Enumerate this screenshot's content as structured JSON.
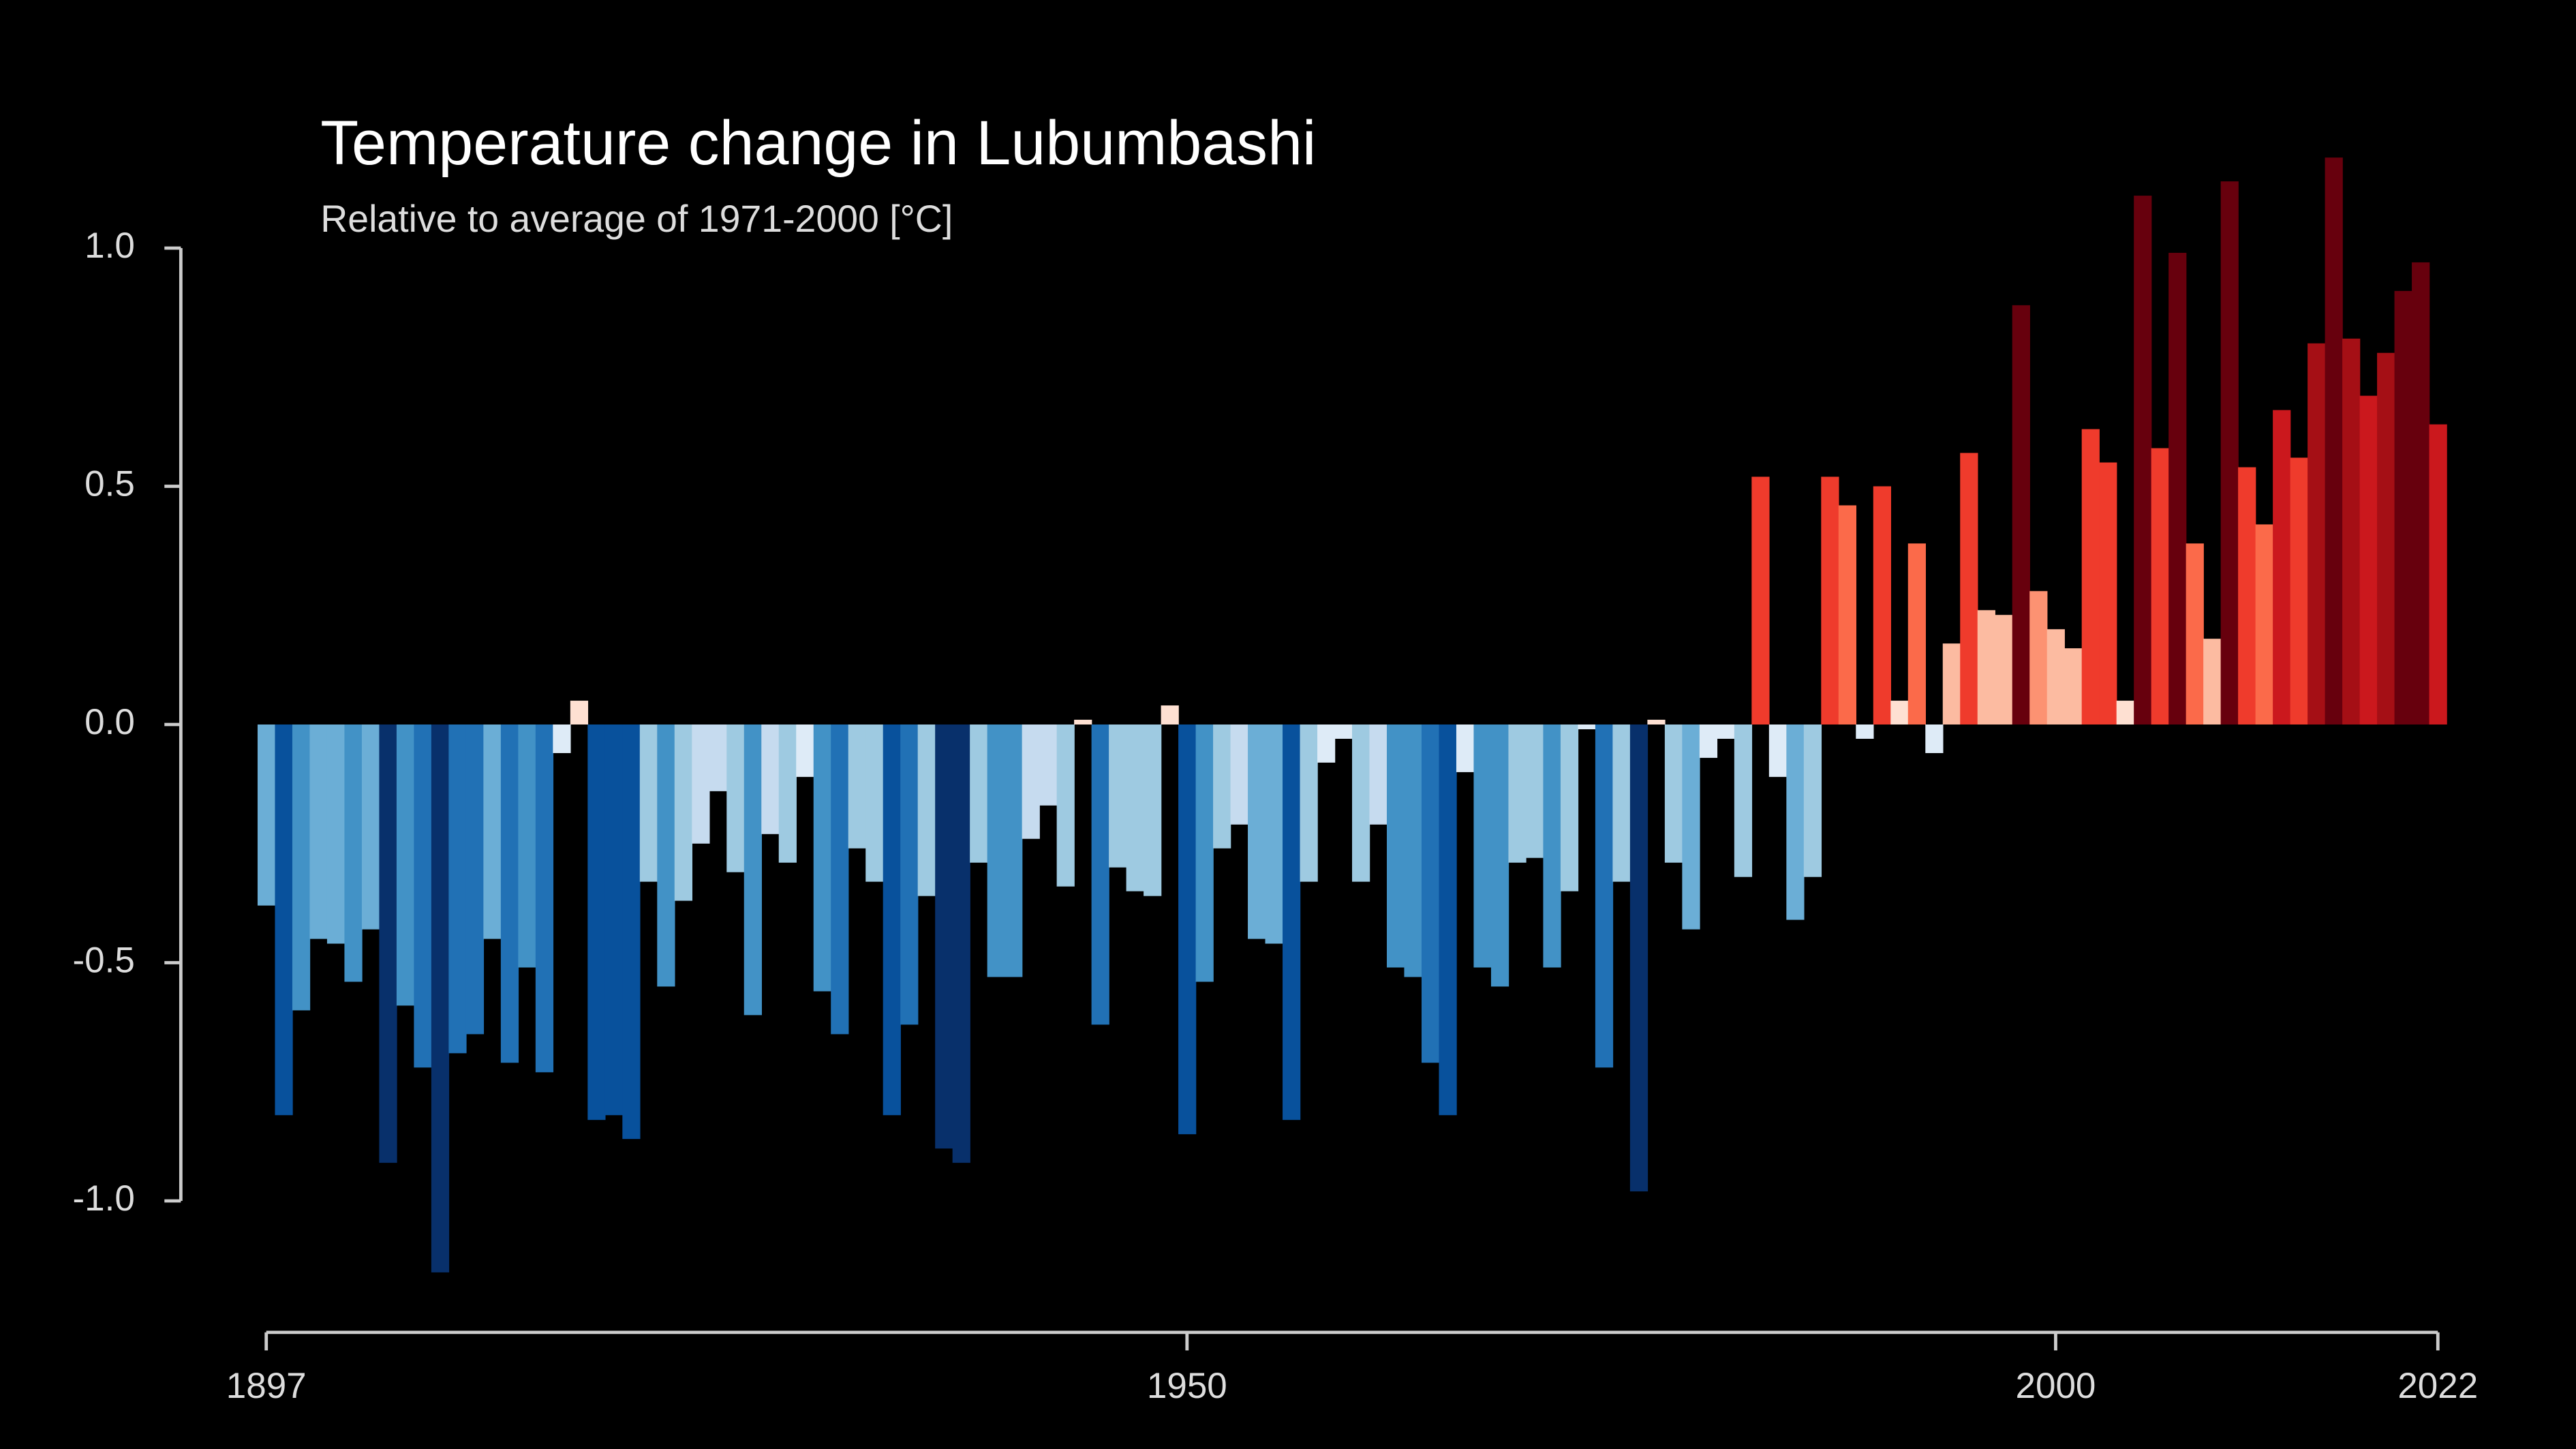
{
  "chart_data": {
    "type": "bar",
    "title": "Temperature change in Lubumbashi",
    "subtitle": "Relative to average of 1971-2000  [°C]",
    "x": [
      1897,
      1898,
      1899,
      1900,
      1901,
      1902,
      1903,
      1904,
      1905,
      1906,
      1907,
      1908,
      1909,
      1910,
      1911,
      1912,
      1913,
      1914,
      1915,
      1916,
      1917,
      1918,
      1919,
      1920,
      1921,
      1922,
      1923,
      1924,
      1925,
      1926,
      1927,
      1928,
      1929,
      1930,
      1931,
      1932,
      1933,
      1934,
      1935,
      1936,
      1937,
      1938,
      1939,
      1940,
      1941,
      1942,
      1943,
      1944,
      1945,
      1946,
      1947,
      1948,
      1949,
      1950,
      1951,
      1952,
      1953,
      1954,
      1955,
      1956,
      1957,
      1958,
      1959,
      1960,
      1961,
      1962,
      1963,
      1964,
      1965,
      1966,
      1967,
      1968,
      1969,
      1970,
      1971,
      1972,
      1973,
      1974,
      1975,
      1976,
      1977,
      1978,
      1979,
      1980,
      1981,
      1982,
      1983,
      1984,
      1985,
      1986,
      1987,
      1988,
      1989,
      1990,
      1991,
      1992,
      1993,
      1994,
      1995,
      1996,
      1997,
      1998,
      1999,
      2000,
      2001,
      2002,
      2003,
      2004,
      2005,
      2006,
      2007,
      2008,
      2009,
      2010,
      2011,
      2012,
      2013,
      2014,
      2015,
      2016,
      2017,
      2018,
      2019,
      2020,
      2021,
      2022
    ],
    "values": [
      -0.38,
      -0.82,
      -0.6,
      -0.45,
      -0.46,
      -0.54,
      -0.43,
      -0.92,
      -0.59,
      -0.72,
      -1.15,
      -0.69,
      -0.65,
      -0.45,
      -0.71,
      -0.51,
      -0.73,
      -0.06,
      0.05,
      -0.83,
      -0.82,
      -0.87,
      -0.33,
      -0.55,
      -0.37,
      -0.25,
      -0.14,
      -0.31,
      -0.61,
      -0.23,
      -0.29,
      -0.11,
      -0.56,
      -0.65,
      -0.26,
      -0.33,
      -0.82,
      -0.63,
      -0.36,
      -0.89,
      -0.92,
      -0.29,
      -0.53,
      -0.53,
      -0.24,
      -0.17,
      -0.34,
      0.01,
      -0.63,
      -0.3,
      -0.35,
      -0.36,
      0.04,
      -0.86,
      -0.54,
      -0.26,
      -0.21,
      -0.45,
      -0.46,
      -0.83,
      -0.33,
      -0.08,
      -0.03,
      -0.33,
      -0.21,
      -0.51,
      -0.53,
      -0.71,
      -0.82,
      -0.1,
      -0.51,
      -0.55,
      -0.29,
      -0.28,
      -0.51,
      -0.35,
      -0.01,
      -0.72,
      -0.33,
      -0.98,
      0.01,
      -0.29,
      -0.43,
      -0.07,
      -0.03,
      -0.32,
      0.52,
      -0.11,
      -0.41,
      -0.32,
      0.52,
      0.46,
      -0.03,
      0.5,
      0.05,
      0.38,
      -0.06,
      0.17,
      0.57,
      0.24,
      0.23,
      0.88,
      0.28,
      0.2,
      0.16,
      0.62,
      0.55,
      0.05,
      1.11,
      0.58,
      0.99,
      0.38,
      0.18,
      1.14,
      0.54,
      0.42,
      0.66,
      0.56,
      0.8,
      1.19,
      0.81,
      0.69,
      0.78,
      0.91,
      0.97,
      0.63
    ],
    "colormap": [
      "#08306b",
      "#08519c",
      "#2171b5",
      "#4292c6",
      "#6baed6",
      "#9ecae1",
      "#c6dbef",
      "#deebf7",
      "#fee0d2",
      "#fcbba1",
      "#fc9272",
      "#fb6a4a",
      "#ef3b2c",
      "#cb181d",
      "#a50f15",
      "#67000d"
    ],
    "colormap_range": [
      -1,
      1
    ],
    "xlim": [
      1897,
      2022
    ],
    "xticks": [
      1897,
      1950,
      2000,
      2022
    ],
    "ylim": [
      -1.0,
      1.0
    ],
    "yticks": [
      {
        "value": 1,
        "label": "1.0"
      },
      {
        "value": 0.5,
        "label": "0.5"
      },
      {
        "value": 0,
        "label": "0.0"
      },
      {
        "value": -0.5,
        "label": "-0.5"
      },
      {
        "value": -1,
        "label": "-1.0"
      }
    ],
    "grid": false
  }
}
